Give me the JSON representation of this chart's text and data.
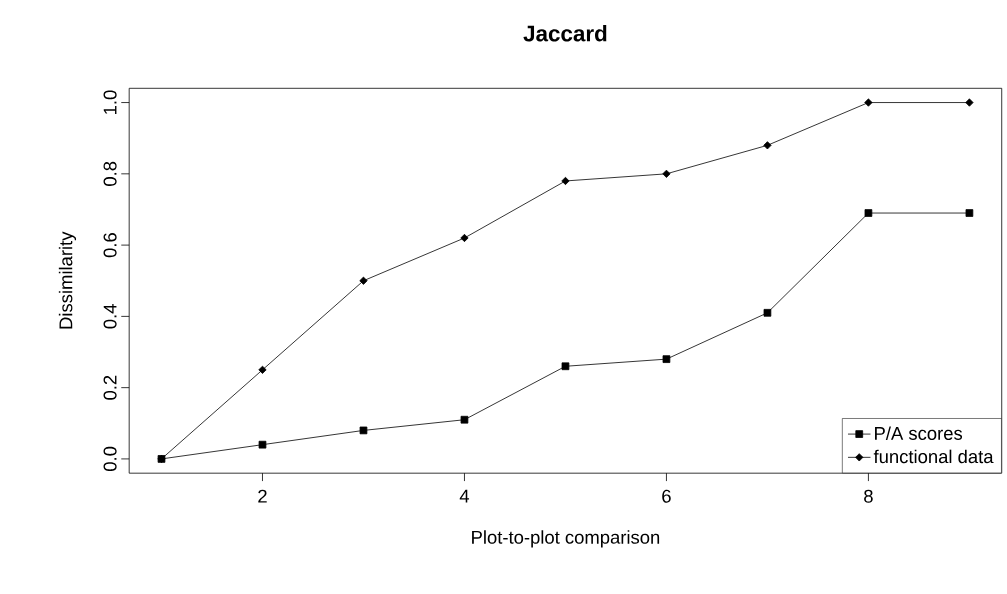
{
  "chart_data": {
    "type": "line",
    "title": "Jaccard",
    "xlabel": "Plot-to-plot comparison",
    "ylabel": "Dissimilarity",
    "x": [
      1,
      2,
      3,
      4,
      5,
      6,
      7,
      8,
      9
    ],
    "series": [
      {
        "name": "P/A scores",
        "color": "#000000",
        "marker": "square",
        "values": [
          0.0,
          0.04,
          0.08,
          0.11,
          0.26,
          0.28,
          0.41,
          0.69,
          0.69
        ]
      },
      {
        "name": "functional data",
        "color": "#000000",
        "marker": "diamond",
        "values": [
          0.0,
          0.25,
          0.5,
          0.62,
          0.78,
          0.8,
          0.88,
          1.0,
          1.0
        ]
      }
    ],
    "xlim": [
      0.68,
      9.32
    ],
    "ylim": [
      -0.04,
      1.04
    ],
    "xticks": [
      2,
      4,
      6,
      8
    ],
    "yticks": [
      {
        "value": 0,
        "label": "0.0"
      },
      {
        "value": 0.2,
        "label": "0.2"
      },
      {
        "value": 0.4,
        "label": "0.4"
      },
      {
        "value": 0.6,
        "label": "0.6"
      },
      {
        "value": 0.8,
        "label": "0.8"
      },
      {
        "value": 1.0,
        "label": "1.0"
      }
    ],
    "grid": false,
    "legend": "bottom right",
    "line_style": "solid"
  }
}
